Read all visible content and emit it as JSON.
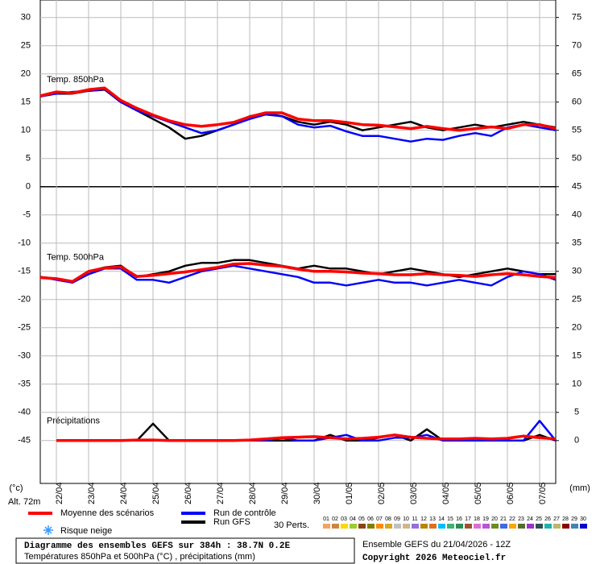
{
  "chart_data": {
    "type": "line",
    "categories": [
      null,
      "22/04",
      null,
      "23/04",
      null,
      "24/04",
      null,
      "25/04",
      null,
      "26/04",
      null,
      "27/04",
      null,
      "28/04",
      null,
      "29/04",
      null,
      "30/04",
      null,
      "01/05",
      null,
      "02/05",
      null,
      "03/05",
      null,
      "04/05",
      null,
      "05/05",
      null,
      "06/05",
      null,
      "07/05",
      null
    ],
    "ylim": [
      -52.6,
      33.1
    ],
    "yticks": [
      30,
      25,
      20,
      15,
      10,
      5,
      0,
      -5,
      -10,
      -15,
      -20,
      -25,
      -30,
      -35,
      -40,
      -45
    ],
    "y2lim": [
      -7.6,
      78.1
    ],
    "y2ticks": [
      75,
      70,
      65,
      60,
      55,
      50,
      45,
      40,
      35,
      30,
      25,
      20,
      15,
      10,
      5,
      0
    ],
    "y_unit_label": "(°c)",
    "y2_unit_label": "(mm)",
    "altitude_label": "Alt. 72m",
    "grid": true,
    "panels": [
      {
        "label": "Temp. 850hPa",
        "axis": "y"
      },
      {
        "label": "Temp. 500hPa",
        "axis": "y"
      },
      {
        "label": "Précipitations",
        "axis": "y2"
      }
    ],
    "runs": [
      {
        "name": "Moyenne des scénarios",
        "color": "#ff0000",
        "width": 3.5,
        "values": [
          [
            16.1,
            16.8,
            16.6,
            17.2,
            17.5,
            15.3,
            13.9,
            12.7,
            11.7,
            11.0,
            10.7,
            11.0,
            11.4,
            12.4,
            13.1,
            13.1,
            12.0,
            11.7,
            11.7,
            11.4,
            11.0,
            10.9,
            10.6,
            10.3,
            10.7,
            10.3,
            10.0,
            10.3,
            10.6,
            10.3,
            11.0,
            11.0,
            10.3
          ],
          [
            -16.1,
            -16.3,
            -16.8,
            -15,
            -14.4,
            -14.2,
            -15.9,
            -15.7,
            -15.4,
            -15.1,
            -14.7,
            -14.3,
            -13.7,
            -13.6,
            -13.9,
            -14.1,
            -14.6,
            -15,
            -15,
            -15.1,
            -15.3,
            -15.4,
            -15.6,
            -15.6,
            -15.4,
            -15.6,
            -15.7,
            -15.9,
            -15.6,
            -15.4,
            -15.6,
            -15.9,
            -16.1
          ],
          [
            null,
            0,
            0,
            0,
            0,
            0,
            0.1,
            0.1,
            0,
            0,
            0,
            0,
            0,
            0.1,
            0.3,
            0.5,
            0.6,
            0.7,
            0.5,
            0.3,
            0.4,
            0.6,
            1.0,
            0.6,
            0.4,
            0.3,
            0.3,
            0.4,
            0.3,
            0.4,
            0.8,
            0.5,
            0.3
          ]
        ]
      },
      {
        "name": "Run de contrôle",
        "color": "#0000ff",
        "width": 2.5,
        "values": [
          [
            16,
            16.5,
            16.8,
            17,
            17.3,
            15,
            13.5,
            12.5,
            11.5,
            10.5,
            9.5,
            10,
            11,
            12,
            12.8,
            12.5,
            11,
            10.5,
            10.8,
            9.8,
            9,
            9,
            8.5,
            8,
            8.5,
            8.3,
            9,
            9.5,
            9,
            10.5,
            11,
            10.5,
            10
          ],
          [
            -16,
            -16.5,
            -17,
            -15.5,
            -14.5,
            -14.5,
            -16.5,
            -16.5,
            -17,
            -16,
            -15,
            -14.5,
            -14,
            -14.5,
            -15,
            -15.5,
            -16,
            -17,
            -17,
            -17.5,
            -17,
            -16.5,
            -17,
            -17,
            -17.5,
            -17,
            -16.5,
            -17,
            -17.5,
            -16,
            -15,
            -15.5,
            -16.5
          ],
          [
            null,
            0,
            0,
            0,
            0,
            0,
            0,
            0,
            0,
            0,
            0,
            0,
            0,
            0,
            0,
            0.5,
            0,
            0,
            0.5,
            1,
            0,
            0,
            0.5,
            0.5,
            1,
            0,
            0,
            0,
            0,
            0,
            0,
            3.5,
            0
          ]
        ]
      },
      {
        "name": "Run GFS",
        "color": "#000000",
        "width": 2.5,
        "values": [
          [
            16,
            16.5,
            16.5,
            17,
            17.2,
            15,
            13.5,
            12,
            10.5,
            8.5,
            9,
            10,
            11,
            12.5,
            13,
            12.5,
            11.5,
            11,
            11.5,
            11,
            10,
            10.5,
            11,
            11.5,
            10.5,
            10,
            10.5,
            11,
            10.5,
            11,
            11.5,
            11,
            10.5
          ],
          [
            -16,
            -16.3,
            -16.8,
            -15,
            -14.3,
            -14,
            -16,
            -15.5,
            -15,
            -14,
            -13.5,
            -13.5,
            -13,
            -13,
            -13.5,
            -14,
            -14.5,
            -14,
            -14.5,
            -14.5,
            -15,
            -15.5,
            -15,
            -14.5,
            -15,
            -15.5,
            -16,
            -15.5,
            -15,
            -14.5,
            -15,
            -15.5,
            -15.5
          ],
          [
            null,
            0,
            0,
            0,
            0,
            0,
            0,
            3,
            0,
            0,
            0,
            0,
            0,
            0,
            0,
            0,
            0,
            0,
            1,
            0,
            0,
            0.5,
            1,
            0,
            2,
            0,
            0,
            0,
            0,
            0,
            0,
            1,
            0
          ]
        ]
      }
    ],
    "snow_risk_label": "Risque neige",
    "perturbations": {
      "label": "30 Perts.",
      "members": [
        {
          "name": "01",
          "color": "#f4a460"
        },
        {
          "name": "02",
          "color": "#cd853f"
        },
        {
          "name": "03",
          "color": "#ffd700"
        },
        {
          "name": "04",
          "color": "#9acd32"
        },
        {
          "name": "05",
          "color": "#8b4513"
        },
        {
          "name": "06",
          "color": "#808000"
        },
        {
          "name": "07",
          "color": "#ff8c00"
        },
        {
          "name": "08",
          "color": "#daa520"
        },
        {
          "name": "09",
          "color": "#c0c0c0"
        },
        {
          "name": "10",
          "color": "#d2b48c"
        },
        {
          "name": "11",
          "color": "#9370db"
        },
        {
          "name": "12",
          "color": "#b8860b"
        },
        {
          "name": "13",
          "color": "#e07020"
        },
        {
          "name": "14",
          "color": "#00bfff"
        },
        {
          "name": "15",
          "color": "#3cb371"
        },
        {
          "name": "16",
          "color": "#2e8b57"
        },
        {
          "name": "17",
          "color": "#a0522d"
        },
        {
          "name": "18",
          "color": "#da70d6"
        },
        {
          "name": "19",
          "color": "#ba55d3"
        },
        {
          "name": "20",
          "color": "#6b8e23"
        },
        {
          "name": "21",
          "color": "#4169e1"
        },
        {
          "name": "22",
          "color": "#ffa500"
        },
        {
          "name": "23",
          "color": "#556b2f"
        },
        {
          "name": "24",
          "color": "#9932cc"
        },
        {
          "name": "25",
          "color": "#2f4f4f"
        },
        {
          "name": "26",
          "color": "#20b2aa"
        },
        {
          "name": "27",
          "color": "#bdb76b"
        },
        {
          "name": "28",
          "color": "#8b0000"
        },
        {
          "name": "29",
          "color": "#4682b4"
        },
        {
          "name": "30",
          "color": "#0000cd"
        }
      ]
    },
    "footer": {
      "title": "Diagramme des ensembles GEFS sur 384h : 38.7N 0.2E",
      "subtitle": "Températures 850hPa et 500hPa (°C) , précipitations (mm)",
      "run": "Ensemble GEFS du 21/04/2026 - 12Z",
      "copyright": "Copyright 2026 Meteociel.fr"
    }
  }
}
